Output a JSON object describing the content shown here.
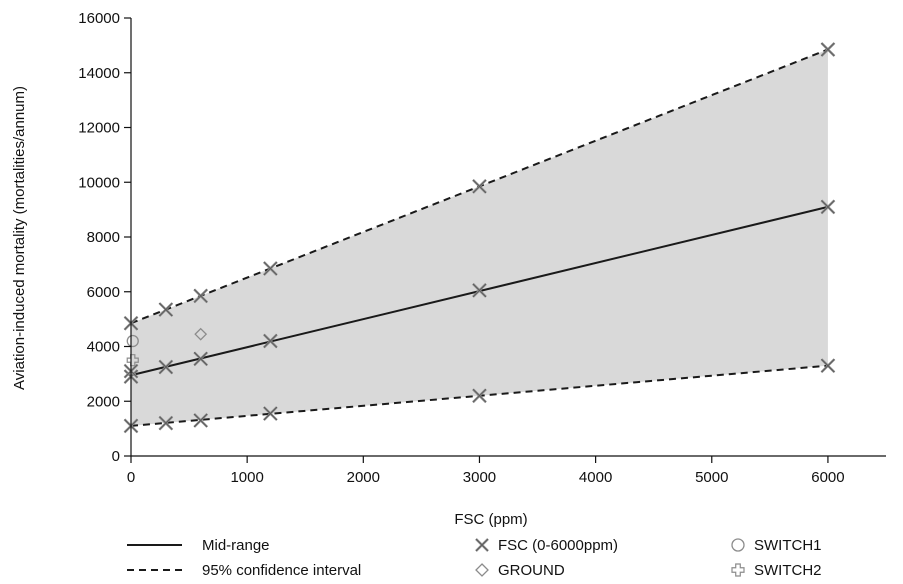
{
  "chart_data": {
    "type": "line",
    "title": "",
    "xlabel": "FSC (ppm)",
    "ylabel": "Aviation-induced mortality (mortalities/annum)",
    "xlim": [
      0,
      6500
    ],
    "ylim": [
      0,
      16000
    ],
    "xticks": [
      0,
      1000,
      2000,
      3000,
      4000,
      5000,
      6000
    ],
    "yticks": [
      0,
      2000,
      4000,
      6000,
      8000,
      10000,
      12000,
      14000,
      16000
    ],
    "grid": false,
    "confidence_band": {
      "x": [
        0,
        6000
      ],
      "lower": [
        1100,
        3300
      ],
      "upper": [
        4850,
        14850
      ],
      "fill": "#d9d9d9"
    },
    "series": [
      {
        "name": "Mid-range",
        "kind": "line",
        "style": "solid",
        "x": [
          0,
          6000
        ],
        "y": [
          2950,
          9100
        ]
      },
      {
        "name": "95% confidence interval",
        "kind": "line",
        "style": "dashed",
        "segments": [
          {
            "x": [
              0,
              6000
            ],
            "y": [
              4850,
              14850
            ]
          },
          {
            "x": [
              0,
              6000
            ],
            "y": [
              1100,
              3300
            ]
          }
        ]
      },
      {
        "name": "FSC (0-6000ppm)",
        "kind": "marker",
        "marker": "x-icon",
        "points": [
          {
            "x": 0,
            "y": 2900
          },
          {
            "x": 0,
            "y": 3100
          },
          {
            "x": 300,
            "y": 3250
          },
          {
            "x": 600,
            "y": 3550
          },
          {
            "x": 1200,
            "y": 4200
          },
          {
            "x": 3000,
            "y": 6050
          },
          {
            "x": 6000,
            "y": 9100
          },
          {
            "x": 0,
            "y": 4850
          },
          {
            "x": 300,
            "y": 5350
          },
          {
            "x": 600,
            "y": 5850
          },
          {
            "x": 1200,
            "y": 6850
          },
          {
            "x": 3000,
            "y": 9850
          },
          {
            "x": 6000,
            "y": 14850
          },
          {
            "x": 0,
            "y": 1100
          },
          {
            "x": 300,
            "y": 1200
          },
          {
            "x": 600,
            "y": 1300
          },
          {
            "x": 1200,
            "y": 1550
          },
          {
            "x": 3000,
            "y": 2200
          },
          {
            "x": 6000,
            "y": 3300
          }
        ]
      },
      {
        "name": "GROUND",
        "kind": "marker",
        "marker": "diamond-icon",
        "points": [
          {
            "x": 600,
            "y": 4450
          }
        ]
      },
      {
        "name": "SWITCH1",
        "kind": "marker",
        "marker": "circle-icon",
        "points": [
          {
            "x": 15,
            "y": 4200
          }
        ]
      },
      {
        "name": "SWITCH2",
        "kind": "marker",
        "marker": "plus-icon",
        "points": [
          {
            "x": 15,
            "y": 3500
          }
        ]
      }
    ],
    "legend": {
      "placement": "bottom",
      "entries": [
        {
          "label": "Mid-range",
          "symbol": "solid-line"
        },
        {
          "label": "FSC (0-6000ppm)",
          "symbol": "x-icon"
        },
        {
          "label": "SWITCH1",
          "symbol": "circle-icon"
        },
        {
          "label": "95% confidence interval",
          "symbol": "dashed-line"
        },
        {
          "label": "GROUND",
          "symbol": "diamond-icon"
        },
        {
          "label": "SWITCH2",
          "symbol": "plus-icon"
        }
      ]
    },
    "colors": {
      "line": "#1a1a1a",
      "marker": "#8c8c8c",
      "band": "#d9d9d9"
    }
  }
}
